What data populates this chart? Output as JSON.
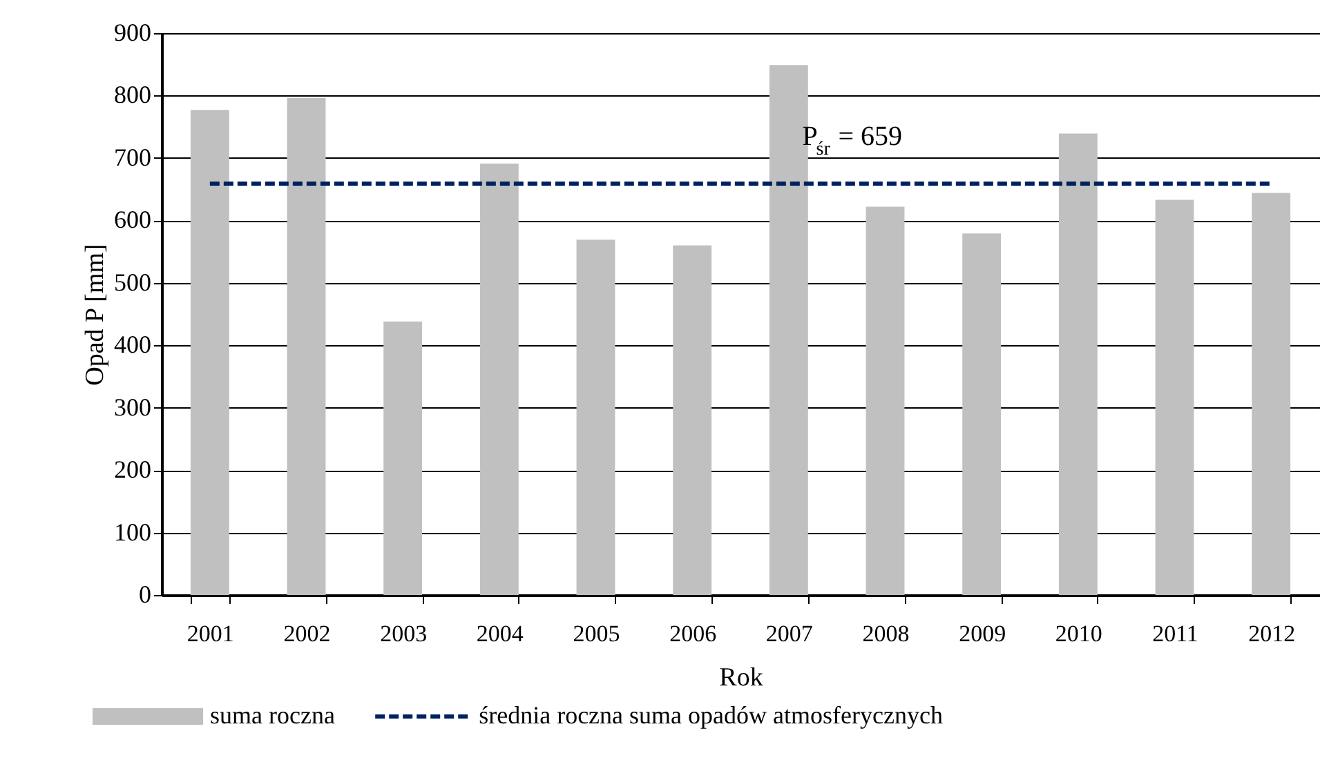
{
  "chart_data": {
    "type": "bar",
    "categories": [
      "2001",
      "2002",
      "2003",
      "2004",
      "2005",
      "2006",
      "2007",
      "2008",
      "2009",
      "2010",
      "2011",
      "2012"
    ],
    "series": [
      {
        "name": "suma roczna",
        "color": "#c0c0c0",
        "values": [
          777,
          796,
          438,
          691,
          569,
          560,
          849,
          622,
          579,
          739,
          633,
          644
        ]
      },
      {
        "name": "średnia roczna suma opadów atmosferycznych",
        "type": "line",
        "color": "#002060",
        "line_style": "dashed",
        "values": [
          659,
          659,
          659,
          659,
          659,
          659,
          659,
          659,
          659,
          659,
          659,
          659
        ]
      }
    ],
    "xlabel": "Rok",
    "ylabel": "Opad P [mm]",
    "ylim": [
      0,
      900
    ],
    "yticks": [
      0,
      100,
      200,
      300,
      400,
      500,
      600,
      700,
      800,
      900
    ],
    "grid": "y",
    "legend": "bottom",
    "annotations": [
      {
        "text": "P$_{śr}$ = 659",
        "x": "2008",
        "y": 659
      }
    ]
  }
}
